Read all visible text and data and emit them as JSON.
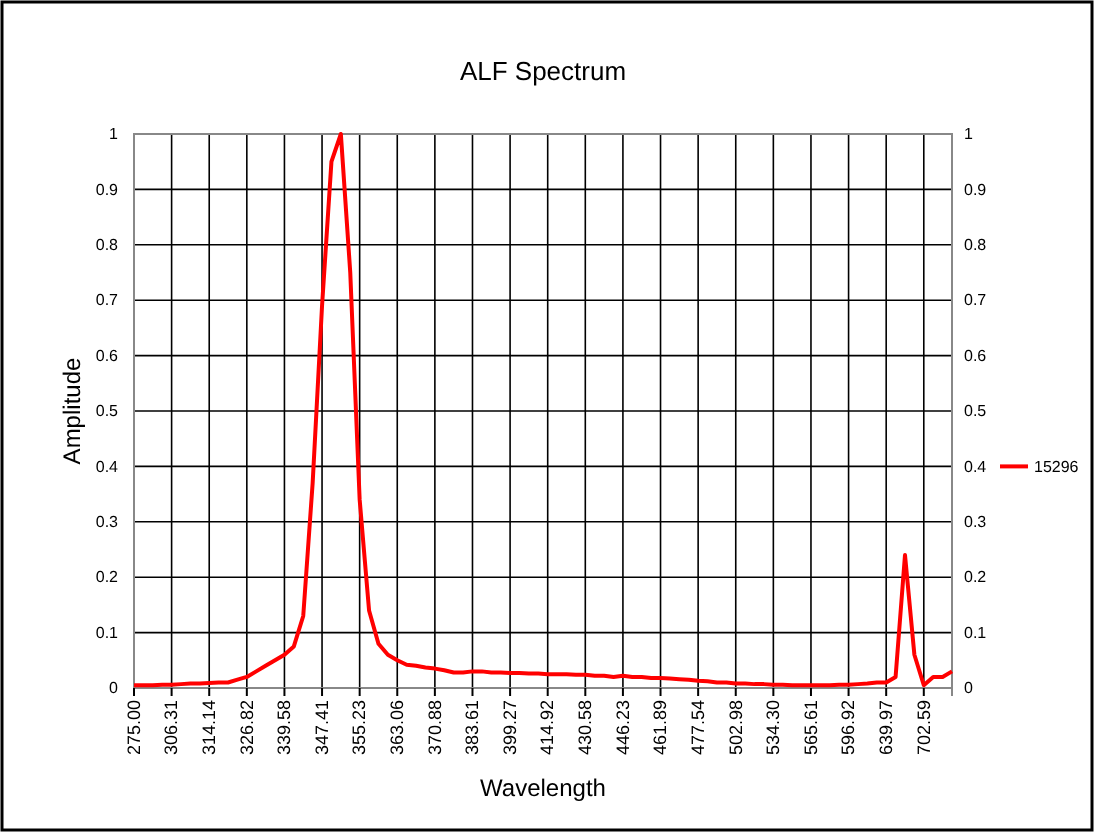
{
  "chart_data": {
    "type": "line",
    "title": "ALF Spectrum",
    "xlabel": "Wavelength",
    "ylabel": "Amplitude",
    "categories": [
      "275.00",
      null,
      null,
      null,
      "306.31",
      null,
      null,
      null,
      "314.14",
      null,
      null,
      null,
      "326.82",
      null,
      null,
      null,
      "339.58",
      null,
      null,
      null,
      "347.41",
      null,
      null,
      null,
      "355.23",
      null,
      null,
      null,
      "363.06",
      null,
      null,
      null,
      "370.88",
      null,
      null,
      null,
      "383.61",
      null,
      null,
      null,
      "399.27",
      null,
      null,
      null,
      "414.92",
      null,
      null,
      null,
      "430.58",
      null,
      null,
      null,
      "446.23",
      null,
      null,
      null,
      "461.89",
      null,
      null,
      null,
      "477.54",
      null,
      null,
      null,
      "502.98",
      null,
      null,
      null,
      "534.30",
      null,
      null,
      null,
      "565.61",
      null,
      null,
      null,
      "596.92",
      null,
      null,
      null,
      "639.97",
      null,
      null,
      null,
      "702.59",
      null,
      null,
      null
    ],
    "series": [
      {
        "name": "15296",
        "color": "#ff0000",
        "values": [
          0.005,
          0.005,
          0.005,
          0.006,
          0.006,
          0.007,
          0.008,
          0.008,
          0.009,
          0.01,
          0.01,
          0.015,
          0.02,
          0.03,
          0.04,
          0.05,
          0.06,
          0.075,
          0.13,
          0.37,
          0.69,
          0.95,
          1.0,
          0.75,
          0.34,
          0.14,
          0.08,
          0.06,
          0.05,
          0.042,
          0.04,
          0.037,
          0.035,
          0.032,
          0.028,
          0.028,
          0.03,
          0.03,
          0.028,
          0.028,
          0.027,
          0.027,
          0.026,
          0.026,
          0.025,
          0.025,
          0.025,
          0.024,
          0.024,
          0.022,
          0.022,
          0.02,
          0.022,
          0.02,
          0.02,
          0.018,
          0.018,
          0.017,
          0.016,
          0.015,
          0.013,
          0.012,
          0.01,
          0.01,
          0.008,
          0.008,
          0.007,
          0.007,
          0.006,
          0.006,
          0.005,
          0.005,
          0.005,
          0.005,
          0.005,
          0.006,
          0.006,
          0.007,
          0.008,
          0.01,
          0.01,
          0.02,
          0.24,
          0.06,
          0.005,
          0.02,
          0.02,
          0.03
        ]
      }
    ],
    "ylim": [
      0,
      1
    ],
    "yticks": [
      0,
      0.1,
      0.2,
      0.3,
      0.4,
      0.5,
      0.6,
      0.7,
      0.8,
      0.9,
      1
    ],
    "y2lim": [
      0,
      1
    ],
    "y2ticks": [
      0,
      0.1,
      0.2,
      0.3,
      0.4,
      0.5,
      0.6,
      0.7,
      0.8,
      0.9,
      1
    ],
    "grid": true,
    "legend": "right",
    "marker": "none",
    "line_style": "solid"
  }
}
